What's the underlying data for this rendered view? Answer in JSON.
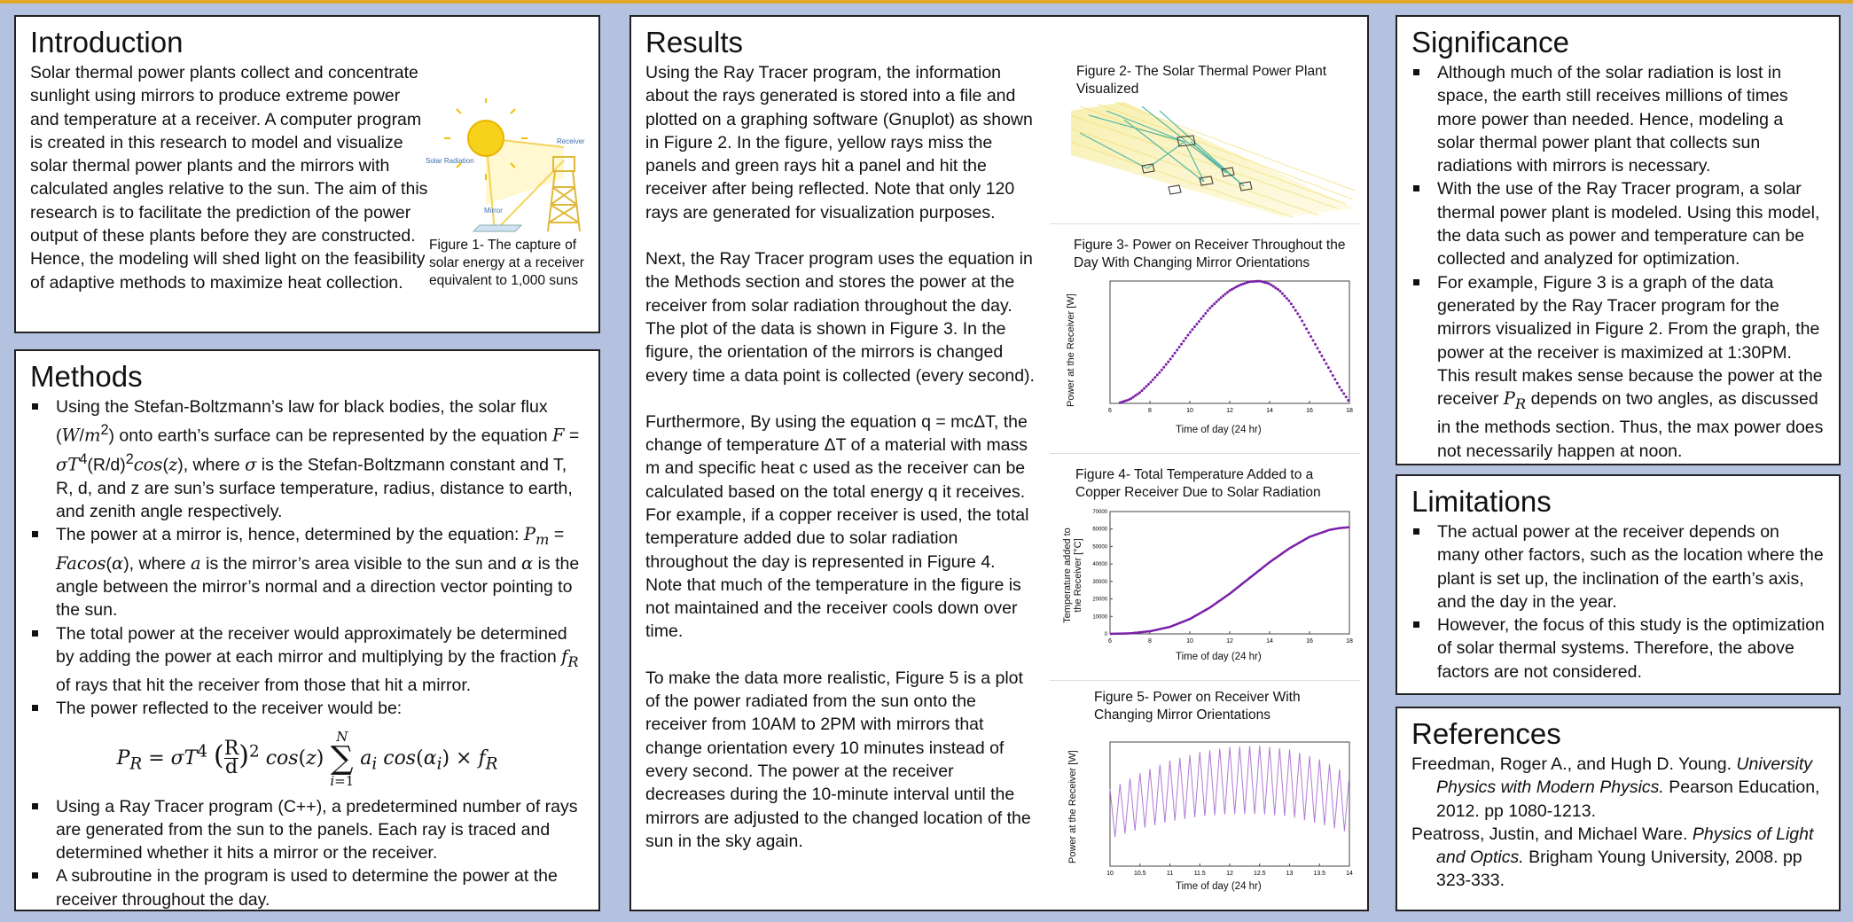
{
  "intro": {
    "title": "Introduction",
    "text": "Solar thermal power plants collect and concentrate sunlight using mirrors to produce extreme power and temperature at a receiver. A computer program is created in this research to model and visualize solar thermal power plants and the mirrors with calculated angles relative to the sun. The aim of this research is to facilitate the prediction of the power output of these plants before they are constructed. Hence, the modeling will shed light on the feasibility of adaptive methods to maximize heat collection.",
    "fig1_caption": "Figure 1- The capture of solar energy at a receiver equivalent to 1,000 suns",
    "fig1_labels": {
      "solar": "Solar Radiation",
      "receiver": "Receiver",
      "mirror": "Mirror"
    }
  },
  "methods": {
    "title": "Methods",
    "b1": "Using the Stefan-Boltzmann’s law for black bodies, the solar flux (W/m²) onto earth’s surface can be represented by the equation F = σT⁴(R/d)²cos(z), where σ is the Stefan-Boltzmann constant and T, R, d, and z are sun’s surface temperature, radius, distance to earth, and zenith angle respectively.",
    "b2": "The power at a mirror is, hence, determined by the equation: Pm = Facos(α), where a is the mirror’s area visible to the sun and α is the angle between the mirror’s normal and a direction vector pointing to the sun.",
    "b3": "The total power at the receiver would approximately be determined by adding the power at each mirror and multiplying by the fraction fR of rays that hit the receiver from those that hit a mirror.",
    "b4": "The power reflected to the receiver would be:",
    "equation": "P_R = σT⁴ (R/d)² cos(z) Σ_{i=1}^{N} a_i cos(α_i) × f_R",
    "b5": "Using a Ray Tracer program (C++), a predetermined number of rays are generated from the sun to the panels. Each ray is traced and determined whether it hits a mirror or the receiver.",
    "b6": "A subroutine in the program is used to determine the power at the receiver throughout the day."
  },
  "results": {
    "title": "Results",
    "p1": "Using the Ray Tracer program, the information about the rays generated is stored into a file and plotted on a graphing software (Gnuplot) as shown in Figure 2. In the figure, yellow rays miss the panels and green rays hit a panel and hit the receiver after being reflected. Note that only 120 rays are generated for visualization purposes.",
    "p2": "Next, the Ray Tracer program uses the equation in the Methods section and stores the power at the receiver from solar radiation throughout the day. The plot of the data is shown in Figure 3. In the figure, the orientation of the mirrors is changed every time a data point is collected (every second).",
    "p3": "Furthermore, By using the equation q = mcΔT, the change of temperature ΔT of a material with mass m and specific heat c used as the receiver can be calculated based on the total energy q it receives. For example, if a copper receiver is used, the total temperature added due to solar radiation throughout the day is represented in Figure 4. Note that much of the temperature in the figure is not maintained and the receiver cools down over time.",
    "p4": "To make the data more realistic, Figure 5 is a plot of the power radiated from the sun onto the receiver from 10AM to 2PM with mirrors that change orientation every 10 minutes instead of every second. The power at the receiver decreases during the 10-minute interval until the mirrors are adjusted to the changed location of the sun in the sky again.",
    "fig2_caption": "Figure 2- The Solar Thermal Power Plant Visualized",
    "fig3_caption": "Figure 3- Power on Receiver Throughout the Day With Changing Mirror Orientations",
    "fig4_caption": "Figure 4- Total Temperature Added to a Copper Receiver Due to Solar Radiation",
    "fig5_caption": "Figure 5- Power on Receiver With Changing Mirror Orientations"
  },
  "significance": {
    "title": "Significance",
    "b1": "Although much of the solar radiation is lost in space, the earth still receives millions of times more power than needed. Hence, modeling a solar thermal power plant that collects sun radiations with mirrors is necessary.",
    "b2": "With the use of the Ray Tracer program, a solar thermal power plant is modeled. Using this model, the data such as power and temperature can be collected and analyzed for optimization.",
    "b3": "For example, Figure 3 is a graph of the data generated by the Ray Tracer program for the mirrors visualized in Figure 2. From the graph, the power at the receiver is maximized at 1:30PM. This result makes sense because the power at the receiver PR depends on two angles, as discussed in the methods section. Thus, the max power does not necessarily happen at noon."
  },
  "limitations": {
    "title": "Limitations",
    "b1": "The actual power at the receiver depends on many other factors, such as the location where the plant is set up, the inclination of the earth’s axis, and the day in the year.",
    "b2": "However, the focus of this study is the optimization of solar thermal systems. Therefore, the above factors are not considered."
  },
  "references": {
    "title": "References",
    "r1_authors": "Freedman, Roger A., and Hugh D. Young.",
    "r1_title": "University Physics with Modern Physics.",
    "r1_rest": "Pearson Education, 2012. pp 1080-1213.",
    "r2_authors": "Peatross, Justin, and Michael Ware.",
    "r2_title": "Physics of Light and Optics.",
    "r2_rest": "Brigham Young University, 2008. pp 323-333."
  },
  "chart_data": [
    {
      "type": "scatter",
      "title": "Figure 3- Power on Receiver Throughout the Day With Changing Mirror Orientations",
      "xlabel": "Time of day (24 hr)",
      "ylabel": "Power at the Receiver [W]",
      "xlim": [
        6,
        18
      ],
      "xticks": [
        "6",
        "8",
        "10",
        "12",
        "14",
        "16",
        "18"
      ],
      "ylim": [
        0,
        9
      ],
      "x": [
        6.5,
        7,
        7.5,
        8,
        8.5,
        9,
        9.5,
        10,
        10.5,
        11,
        11.5,
        12,
        12.5,
        13,
        13.5,
        14,
        14.5,
        15,
        15.5,
        16,
        16.5,
        17,
        17.5,
        18
      ],
      "y": [
        0.05,
        0.3,
        0.8,
        1.5,
        2.3,
        3.2,
        4.2,
        5.2,
        6.1,
        7.0,
        7.7,
        8.3,
        8.7,
        8.95,
        9.0,
        8.8,
        8.3,
        7.5,
        6.4,
        5.1,
        3.8,
        2.5,
        1.2,
        0.1
      ],
      "color": "#7a1fa8"
    },
    {
      "type": "line",
      "title": "Figure 4- Total Temperature Added to a Copper Receiver Due to Solar Radiation",
      "xlabel": "Time of day (24 hr)",
      "ylabel": "Temperature added to the Receiver [°C]",
      "xlim": [
        6,
        18
      ],
      "xticks": [
        "6",
        "8",
        "10",
        "12",
        "14",
        "16",
        "18"
      ],
      "ylim": [
        0,
        70000
      ],
      "yticks": [
        "0",
        "10000",
        "20000",
        "30000",
        "40000",
        "50000",
        "60000",
        "70000"
      ],
      "x": [
        6,
        7,
        8,
        9,
        10,
        11,
        12,
        13,
        14,
        15,
        16,
        17,
        17.5,
        18
      ],
      "y": [
        0,
        300,
        1500,
        4000,
        8500,
        15000,
        23000,
        32000,
        41000,
        49000,
        55500,
        59500,
        60500,
        61000
      ],
      "color": "#7a1fa8"
    },
    {
      "type": "line",
      "title": "Figure 5- Power on Receiver With Changing Mirror Orientations",
      "xlabel": "Time of day (24 hr)",
      "ylabel": "Power at the Receiver [W]",
      "xlim": [
        10,
        14
      ],
      "xticks": [
        "10",
        "10.5",
        "11",
        "11.5",
        "12",
        "12.5",
        "13",
        "13.5",
        "14"
      ],
      "sawtooth_period_hours": 0.1667,
      "envelope_x": [
        10,
        10.5,
        11,
        11.5,
        12,
        12.5,
        13,
        13.5,
        14
      ],
      "envelope_high": [
        0.62,
        0.75,
        0.85,
        0.92,
        0.96,
        0.97,
        0.94,
        0.86,
        0.74
      ],
      "envelope_low": [
        0.22,
        0.3,
        0.36,
        0.4,
        0.42,
        0.42,
        0.4,
        0.34,
        0.27
      ],
      "color": "#b07ad6"
    }
  ]
}
